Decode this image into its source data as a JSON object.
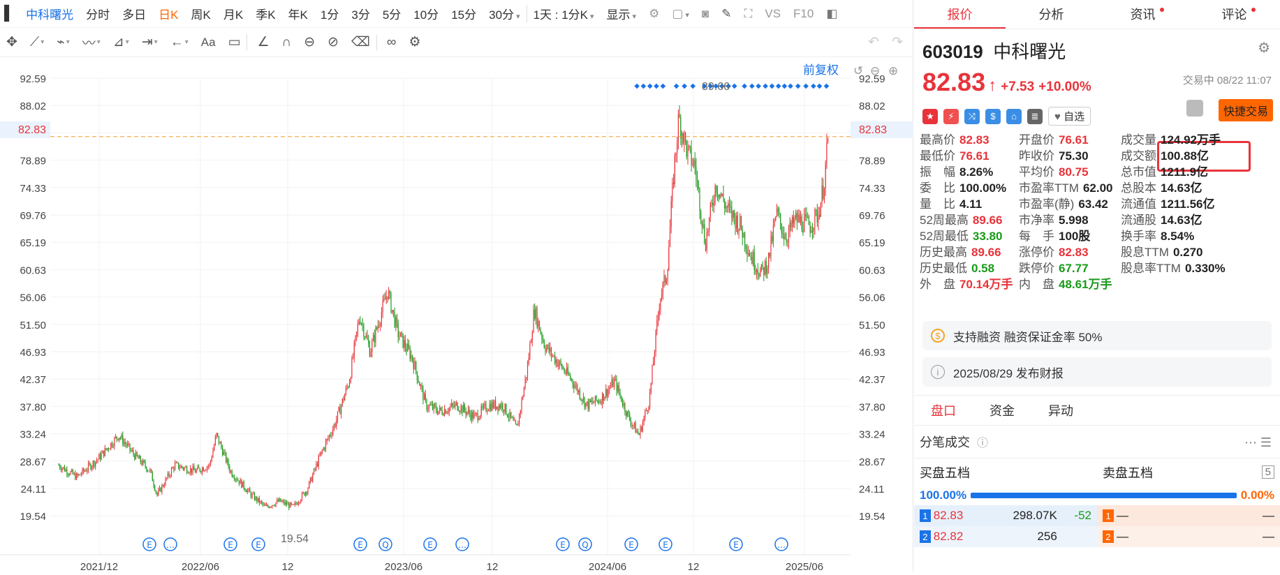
{
  "topbar": {
    "stock_name": "中科曙光",
    "items": [
      "分时",
      "多日",
      "日K",
      "周K",
      "月K",
      "季K",
      "年K",
      "1分",
      "3分",
      "5分",
      "10分",
      "15分",
      "30分"
    ],
    "interval": "1天 : 1分K",
    "display": "显示",
    "vs": "VS",
    "f10": "F10"
  },
  "chart": {
    "restore_label": "前复权",
    "price_ticks": [
      "92.59",
      "88.02",
      "82.83",
      "78.89",
      "74.33",
      "69.76",
      "65.19",
      "60.63",
      "56.06",
      "51.50",
      "46.93",
      "42.37",
      "37.80",
      "33.24",
      "28.67",
      "24.11",
      "19.54"
    ],
    "date_ticks": [
      "2021/12",
      "2022/06",
      "12",
      "2023/06",
      "12",
      "2024/06",
      "12",
      "2025/06"
    ],
    "high_label": "89.66",
    "low_label": "19.54",
    "current_price": "82.83",
    "price_min": 17.0,
    "price_max": 95.0
  },
  "quote_tabs": [
    {
      "label": "报价",
      "active": true,
      "dot": false
    },
    {
      "label": "分析",
      "active": false,
      "dot": false
    },
    {
      "label": "资讯",
      "active": false,
      "dot": true
    },
    {
      "label": "评论",
      "active": false,
      "dot": true
    }
  ],
  "stock": {
    "code": "603019",
    "name": "中科曙光",
    "price": "82.83",
    "change": "+7.53",
    "change_pct": "+10.00%",
    "status": "交易中 08/22 11:07",
    "favorite": "自选",
    "quick_trade": "快捷交易"
  },
  "stats": [
    [
      {
        "k": "最高价",
        "v": "82.83",
        "c": "red"
      },
      {
        "k": "开盘价",
        "v": "76.61",
        "c": "red"
      },
      {
        "k": "成交量",
        "v": "124.92万手",
        "c": "blk"
      }
    ],
    [
      {
        "k": "最低价",
        "v": "76.61",
        "c": "red"
      },
      {
        "k": "昨收价",
        "v": "75.30",
        "c": "blk"
      },
      {
        "k": "成交额",
        "v": "100.88亿",
        "c": "blk"
      }
    ],
    [
      {
        "k": "振　幅",
        "v": "8.26%",
        "c": "blk"
      },
      {
        "k": "平均价",
        "v": "80.75",
        "c": "red"
      },
      {
        "k": "总市值",
        "v": "1211.9亿",
        "c": "blk"
      }
    ],
    [
      {
        "k": "委　比",
        "v": "100.00%",
        "c": "blk"
      },
      {
        "k": "市盈率TTM",
        "v": "62.00",
        "c": "blk"
      },
      {
        "k": "总股本",
        "v": "14.63亿",
        "c": "blk"
      }
    ],
    [
      {
        "k": "量　比",
        "v": "4.11",
        "c": "blk"
      },
      {
        "k": "市盈率(静)",
        "v": "63.42",
        "c": "blk"
      },
      {
        "k": "流通值",
        "v": "1211.56亿",
        "c": "blk"
      }
    ],
    [
      {
        "k": "52周最高",
        "v": "89.66",
        "c": "red"
      },
      {
        "k": "市净率",
        "v": "5.998",
        "c": "blk"
      },
      {
        "k": "流通股",
        "v": "14.63亿",
        "c": "blk"
      }
    ],
    [
      {
        "k": "52周最低",
        "v": "33.80",
        "c": "green"
      },
      {
        "k": "每　手",
        "v": "100股",
        "c": "blk"
      },
      {
        "k": "换手率",
        "v": "8.54%",
        "c": "blk"
      }
    ],
    [
      {
        "k": "历史最高",
        "v": "89.66",
        "c": "red"
      },
      {
        "k": "涨停价",
        "v": "82.83",
        "c": "red"
      },
      {
        "k": "股息TTM",
        "v": "0.270",
        "c": "blk"
      }
    ],
    [
      {
        "k": "历史最低",
        "v": "0.58",
        "c": "green"
      },
      {
        "k": "跌停价",
        "v": "67.77",
        "c": "green"
      },
      {
        "k": "股息率TTM",
        "v": "0.330%",
        "c": "blk"
      }
    ],
    [
      {
        "k": "外　盘",
        "v": "70.14万手",
        "c": "red"
      },
      {
        "k": "内　盘",
        "v": "48.61万手",
        "c": "green"
      }
    ]
  ],
  "info": {
    "margin": "支持融资 融资保证金率 50%",
    "report": "2025/08/29  发布财报"
  },
  "pan_tabs": [
    "盘口",
    "资金",
    "异动"
  ],
  "fenbi_label": "分笔成交",
  "five_levels": {
    "buy": "买盘五档",
    "sell": "卖盘五档",
    "num": "5"
  },
  "ratio": {
    "buy": "100.00%",
    "sell": "0.00%"
  },
  "orders": [
    {
      "n": "1",
      "bp": "82.83",
      "bv": "298.07K",
      "bc": "-52",
      "sp": "—",
      "sv": "—"
    },
    {
      "n": "2",
      "bp": "82.82",
      "bv": "256",
      "bc": "",
      "sp": "—",
      "sv": "—"
    }
  ],
  "colors": {
    "up": "#e8333a",
    "down": "#1a9a1a",
    "accent": "#1a73e8",
    "orange": "#ff6600"
  }
}
